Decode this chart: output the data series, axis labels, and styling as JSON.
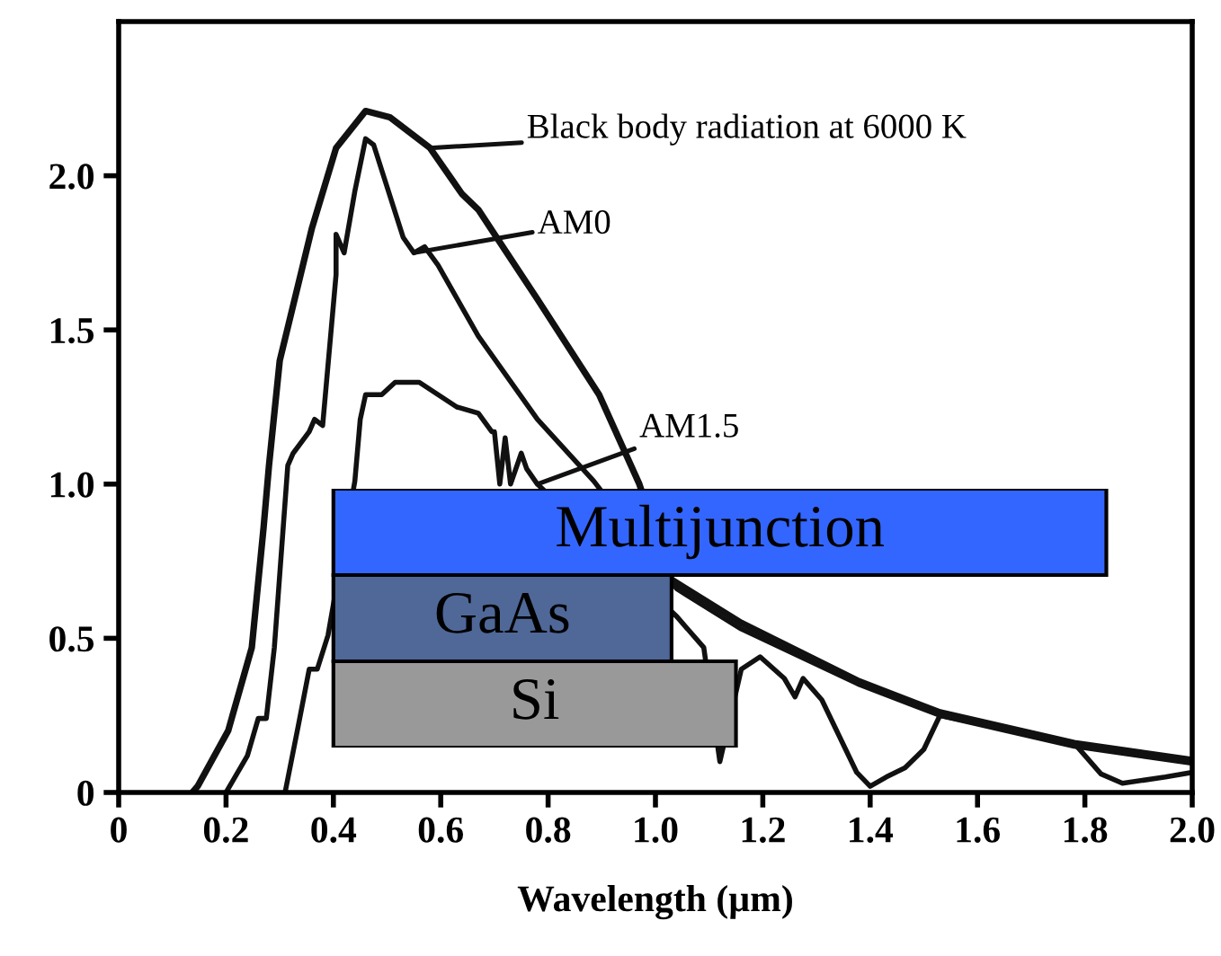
{
  "chart_data": [
    {
      "type": "line",
      "xlabel": "Wavelength (µm)",
      "xlim": [
        0,
        2.0
      ],
      "ylim": [
        0,
        2.5
      ],
      "xticks": [
        {
          "value": 0,
          "label": "0"
        },
        0.2,
        0.4,
        0.6,
        0.8,
        {
          "value": 1.0,
          "label": "1.0"
        },
        1.2,
        1.4,
        1.6,
        1.8,
        {
          "value": 2.0,
          "label": "2.0"
        }
      ],
      "yticks": [
        {
          "value": 0,
          "label": "0"
        },
        0.5,
        {
          "value": 1.0,
          "label": "1.0"
        },
        1.5,
        {
          "value": 2.0,
          "label": "2.0"
        }
      ],
      "grid": false,
      "legend": false,
      "marker": "none",
      "line_style": "solid",
      "series": [
        {
          "color": "#111111",
          "x": [
            0.137,
            0.147,
            0.204,
            0.248,
            0.27,
            0.28,
            0.3,
            0.36,
            0.405,
            0.46,
            0.505,
            0.58,
            0.64,
            0.67,
            0.78,
            0.895,
            0.97,
            1.03,
            1.16,
            1.38,
            1.53,
            1.78,
            2.0
          ],
          "values": [
            0,
            0.02,
            0.2,
            0.47,
            0.86,
            1.06,
            1.4,
            1.83,
            2.09,
            2.21,
            2.19,
            2.09,
            1.94,
            1.89,
            1.6,
            1.29,
            1.0,
            0.69,
            0.55,
            0.36,
            0.26,
            0.16,
            0.105
          ]
        },
        {
          "color": "#111111",
          "x": [
            0.2,
            0.24,
            0.26,
            0.275,
            0.29,
            0.315,
            0.325,
            0.355,
            0.365,
            0.38,
            0.405,
            0.405,
            0.42,
            0.44,
            0.46,
            0.475,
            0.53,
            0.55,
            0.57,
            0.595,
            0.67,
            0.78,
            0.885,
            1.04,
            1.16,
            1.38,
            1.53,
            1.78,
            2.0
          ],
          "values": [
            0,
            0.12,
            0.24,
            0.24,
            0.47,
            1.06,
            1.1,
            1.17,
            1.21,
            1.19,
            1.68,
            1.81,
            1.75,
            1.95,
            2.12,
            2.1,
            1.8,
            1.75,
            1.77,
            1.71,
            1.48,
            1.21,
            1.01,
            0.66,
            0.53,
            0.35,
            0.25,
            0.15,
            0.095
          ]
        },
        {
          "color": "#111111",
          "x": [
            0.31,
            0.335,
            0.355,
            0.37,
            0.39,
            0.44,
            0.45,
            0.46,
            0.49,
            0.515,
            0.56,
            0.63,
            0.67,
            0.695,
            0.7,
            0.71,
            0.72,
            0.73,
            0.75,
            0.76,
            0.78,
            1.04,
            1.09,
            1.12,
            1.16,
            1.195,
            1.24,
            1.26,
            1.275,
            1.31,
            1.375,
            1.4,
            1.43,
            1.465,
            1.5,
            1.53,
            1.78,
            1.83,
            1.87,
            1.95,
            2.0
          ],
          "values": [
            0,
            0.22,
            0.4,
            0.4,
            0.51,
            1.01,
            1.21,
            1.29,
            1.29,
            1.33,
            1.33,
            1.25,
            1.23,
            1.17,
            1.17,
            1.0,
            1.15,
            1.0,
            1.1,
            1.05,
            1.0,
            0.57,
            0.47,
            0.1,
            0.4,
            0.44,
            0.37,
            0.31,
            0.37,
            0.3,
            0.065,
            0.02,
            0.05,
            0.08,
            0.14,
            0.25,
            0.16,
            0.06,
            0.03,
            0.05,
            0.065
          ]
        }
      ],
      "annotations": [
        {
          "text": "Black body radiation at 6000 K",
          "x": 0.58,
          "y": 2.09
        },
        {
          "text": "AM0",
          "x": 0.55,
          "y": 1.75
        },
        {
          "text": "AM1.5",
          "x": 0.78,
          "y": 1.0
        }
      ]
    },
    {
      "type": "bar",
      "orientation": "horizontal",
      "categories": [
        "Multijunction",
        "GaAs",
        "Si"
      ],
      "base": [
        0.4,
        0.4,
        0.4
      ],
      "values": [
        1.44,
        0.63,
        0.75
      ],
      "colors": [
        "#3366ff",
        "#4f6898",
        "#999999"
      ],
      "xlim": [
        0,
        2.0
      ],
      "tick_labels": false
    }
  ]
}
